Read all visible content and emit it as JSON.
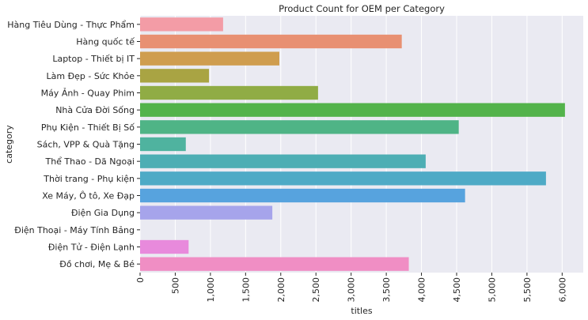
{
  "chart_data": {
    "type": "bar",
    "orientation": "horizontal",
    "title": "Product Count for OEM per Category",
    "xlabel": "titles",
    "ylabel": "category",
    "xlim": [
      0,
      6300
    ],
    "xticks": [
      0,
      500,
      1000,
      1500,
      2000,
      2500,
      3000,
      3500,
      4000,
      4500,
      5000,
      5500,
      6000
    ],
    "xtick_labels": [
      "0",
      "500",
      "1,000",
      "1,500",
      "2,000",
      "2,500",
      "3,000",
      "3,500",
      "4,000",
      "4,500",
      "5,000",
      "5,500",
      "6,000"
    ],
    "grid": true,
    "categories": [
      "Hàng Tiêu Dùng - Thực Phẩm",
      "Hàng quốc tế",
      "Laptop - Thiết bị IT",
      "Làm Đẹp - Sức Khỏe",
      "Máy Ảnh - Quay Phim",
      "Nhà Cửa Đời Sống",
      "Phụ Kiện - Thiết Bị Số",
      "Sách, VPP & Quà Tặng",
      "Thể Thao - Dã Ngoại",
      "Thời trang - Phụ kiện",
      "Xe Máy, Ô tô, Xe Đạp",
      "Điện Gia Dụng",
      "Điện Thoại - Máy Tính Bảng",
      "Điện Tử - Điện Lạnh",
      "Đồ chơi, Mẹ & Bé"
    ],
    "values": [
      1180,
      3720,
      1980,
      980,
      2530,
      6040,
      4530,
      650,
      4060,
      5770,
      4620,
      1880,
      0,
      690,
      3820
    ],
    "colors": [
      "#f39ca6",
      "#e89072",
      "#cf9d4f",
      "#a9a443",
      "#90ac45",
      "#53b34b",
      "#4fb486",
      "#4fb39f",
      "#4daeb4",
      "#4eaac6",
      "#57a3de",
      "#a6a4eb",
      "#d89aee",
      "#e88adc",
      "#f08ec4"
    ]
  }
}
